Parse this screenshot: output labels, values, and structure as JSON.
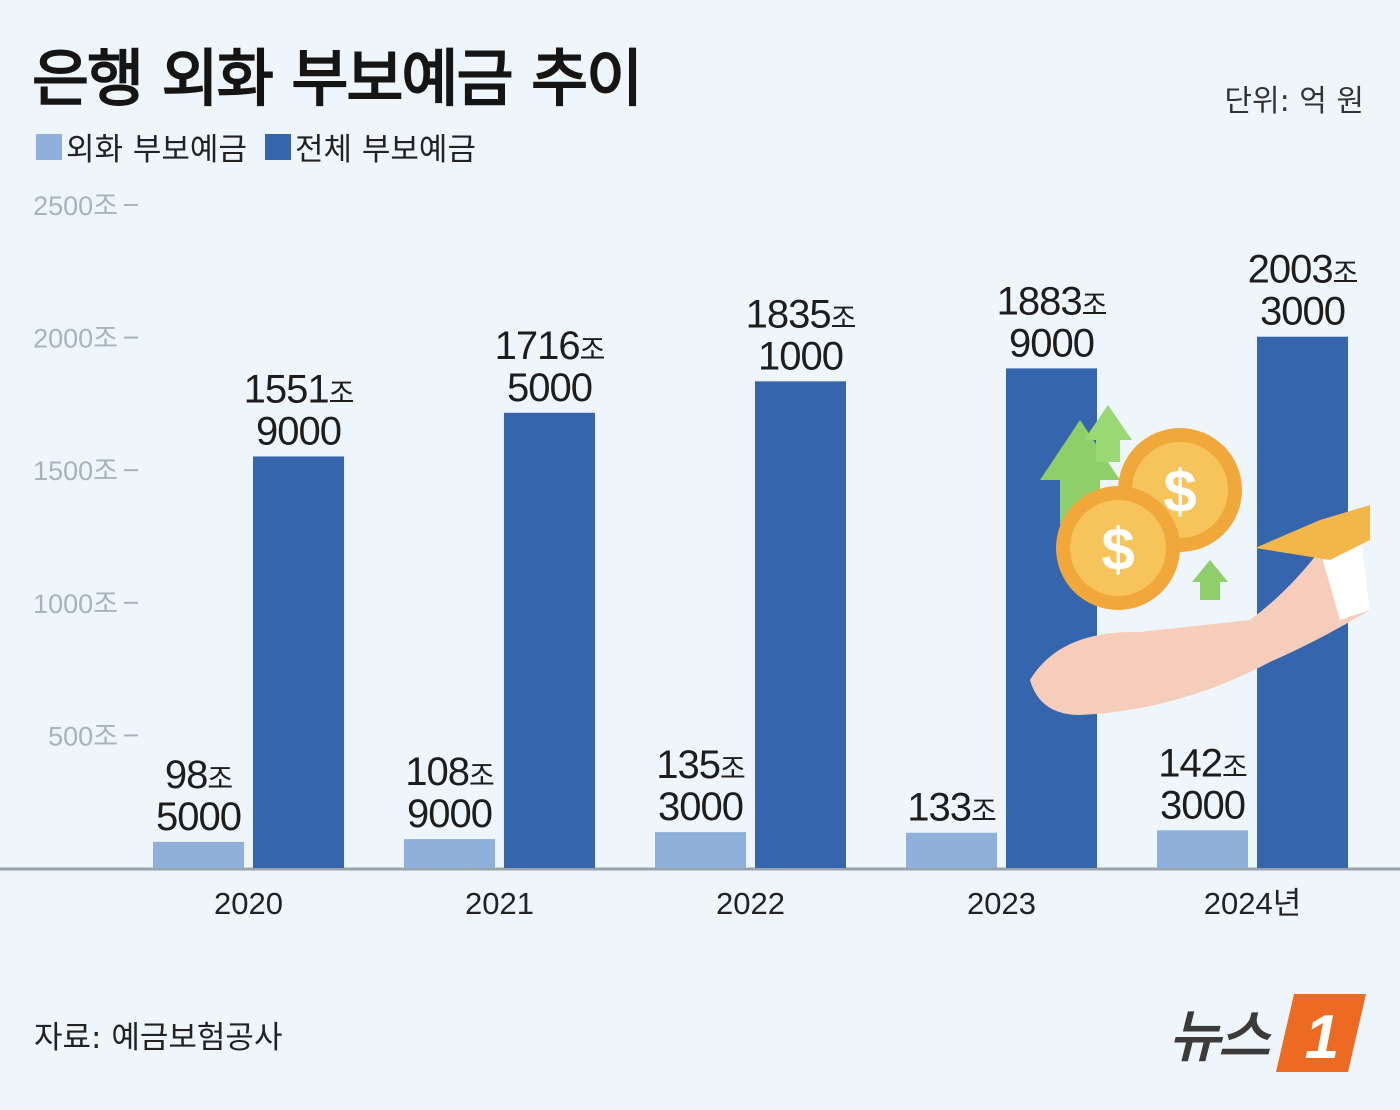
{
  "header": {
    "title": "은행 외화 부보예금 추이",
    "unit": "단위: 억 원"
  },
  "legend": [
    {
      "label": "외화 부보예금",
      "color": "#8eb0db"
    },
    {
      "label": "전체 부보예금",
      "color": "#3565ad"
    }
  ],
  "footer": {
    "source": "자료: 예금보험공사",
    "logo_text": "뉴스",
    "logo_mark": "1"
  },
  "illustration": {
    "icons": [
      "hand-holding-coins-icon",
      "dollar-coin-icon",
      "up-arrow-icon"
    ]
  },
  "chart_data": {
    "type": "bar",
    "categories": [
      "2020",
      "2021",
      "2022",
      "2023",
      "2024년"
    ],
    "series": [
      {
        "name": "외화 부보예금",
        "color": "#8eb0db",
        "values": [
          98.5,
          108.9,
          135.3,
          133,
          142.3
        ],
        "labels": [
          [
            "98조",
            "5000"
          ],
          [
            "108조",
            "9000"
          ],
          [
            "135조",
            "3000"
          ],
          [
            "133조"
          ],
          [
            "142조",
            "3000"
          ]
        ]
      },
      {
        "name": "전체 부보예금",
        "color": "#3565ad",
        "values": [
          1551.9,
          1716.5,
          1835.1,
          1883.9,
          2003.3
        ],
        "labels": [
          [
            "1551조",
            "9000"
          ],
          [
            "1716조",
            "5000"
          ],
          [
            "1835조",
            "1000"
          ],
          [
            "1883조",
            "9000"
          ],
          [
            "2003조",
            "3000"
          ]
        ]
      }
    ],
    "yticks": [
      "500조",
      "1000조",
      "1500조",
      "2000조",
      "2500조"
    ],
    "ytick_values": [
      500,
      1000,
      1500,
      2000,
      2500
    ],
    "ylim": [
      0,
      2500
    ],
    "grid": false,
    "legend_position": "top-left"
  }
}
